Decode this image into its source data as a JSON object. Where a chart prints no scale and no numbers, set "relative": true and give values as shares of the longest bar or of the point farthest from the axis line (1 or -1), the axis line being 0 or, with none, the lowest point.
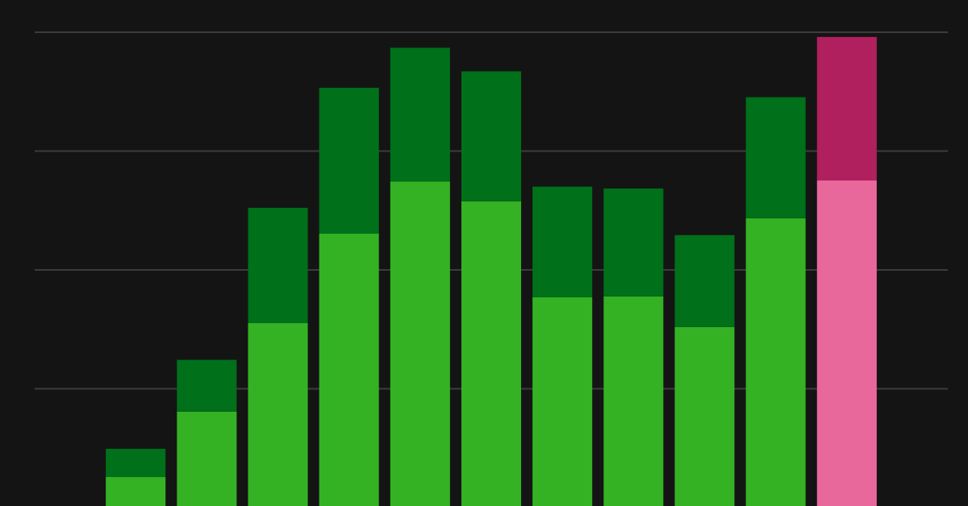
{
  "chart_data": {
    "type": "bar",
    "stacked": true,
    "relative": true,
    "grid": "y",
    "categories": [
      null,
      null,
      null,
      null,
      null,
      null,
      null,
      null,
      null,
      null,
      null
    ],
    "series": [
      {
        "colors": [
          "#34b224",
          "#34b224",
          "#34b224",
          "#34b224",
          "#34b224",
          "#34b224",
          "#34b224",
          "#34b224",
          "#34b224",
          "#34b224",
          "#e8689b"
        ],
        "values": [
          0.065,
          0.204,
          0.392,
          0.582,
          0.693,
          0.651,
          0.447,
          0.449,
          0.384,
          0.615,
          0.695
        ]
      },
      {
        "colors": [
          "#00701a",
          "#00701a",
          "#00701a",
          "#00701a",
          "#00701a",
          "#00701a",
          "#00701a",
          "#00701a",
          "#00701a",
          "#00701a",
          "#b0205e"
        ],
        "values": [
          0.06,
          0.11,
          0.245,
          0.31,
          0.284,
          0.276,
          0.235,
          0.229,
          0.195,
          0.257,
          0.305
        ]
      }
    ]
  }
}
